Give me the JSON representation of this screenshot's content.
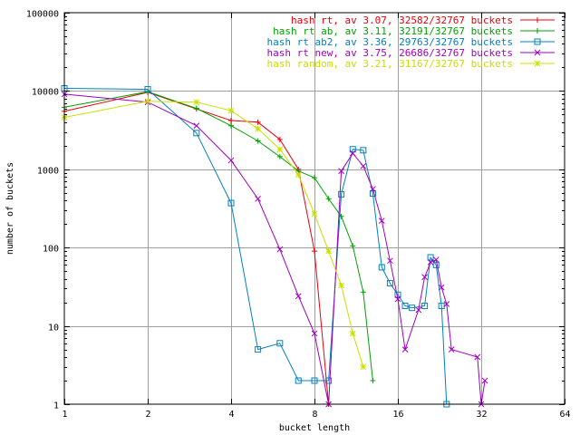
{
  "chart_data": {
    "type": "line",
    "xlabel": "bucket length",
    "ylabel": "number of buckets",
    "x_scale": "log2",
    "y_scale": "log10",
    "xlim": [
      1,
      64
    ],
    "ylim": [
      1,
      100000
    ],
    "x_ticks": [
      {
        "value": 1,
        "label": "1"
      },
      {
        "value": 2,
        "label": "2"
      },
      {
        "value": 4,
        "label": "4"
      },
      {
        "value": 8,
        "label": "8"
      },
      {
        "value": 16,
        "label": "16"
      },
      {
        "value": 32,
        "label": "32"
      },
      {
        "value": 64,
        "label": "64"
      }
    ],
    "y_ticks": [
      {
        "value": 1,
        "label": "1"
      },
      {
        "value": 10,
        "label": "10"
      },
      {
        "value": 100,
        "label": "100"
      },
      {
        "value": 1000,
        "label": "1000"
      },
      {
        "value": 10000,
        "label": "10000"
      },
      {
        "value": 100000,
        "label": "100000"
      }
    ],
    "grid": true,
    "legend_position": "top-right",
    "series": [
      {
        "name": "hash rt, av 3.07, 32582/32767 buckets",
        "color": "#e8000b",
        "marker": "plus",
        "points": [
          [
            1,
            5500
          ],
          [
            2,
            9600
          ],
          [
            3,
            5900
          ],
          [
            4,
            4200
          ],
          [
            5,
            4000
          ],
          [
            6,
            2400
          ],
          [
            7,
            1000
          ],
          [
            8,
            90
          ],
          [
            9,
            1
          ]
        ]
      },
      {
        "name": "hash rt ab, av 3.11, 32191/32767 buckets",
        "color": "#00a000",
        "marker": "plus",
        "points": [
          [
            1,
            6200
          ],
          [
            2,
            9800
          ],
          [
            3,
            6000
          ],
          [
            4,
            3600
          ],
          [
            5,
            2300
          ],
          [
            6,
            1450
          ],
          [
            7,
            950
          ],
          [
            8,
            780
          ],
          [
            9,
            420
          ],
          [
            10,
            250
          ],
          [
            11,
            105
          ],
          [
            12,
            27
          ],
          [
            13,
            2
          ]
        ]
      },
      {
        "name": "hash rt ab2, av 3.36, 29763/32767 buckets",
        "color": "#0080c0",
        "marker": "square",
        "points": [
          [
            1,
            10800
          ],
          [
            2,
            10500
          ],
          [
            3,
            2900
          ],
          [
            4,
            370
          ],
          [
            5,
            5
          ],
          [
            6,
            6
          ],
          [
            7,
            2
          ],
          [
            8,
            2
          ],
          [
            9,
            2
          ],
          [
            10,
            480
          ],
          [
            11,
            1800
          ],
          [
            12,
            1750
          ],
          [
            13,
            490
          ],
          [
            14,
            56
          ],
          [
            15,
            35
          ],
          [
            16,
            25
          ],
          [
            17,
            18
          ],
          [
            18,
            17
          ],
          [
            20,
            18
          ],
          [
            21,
            75
          ],
          [
            22,
            60
          ],
          [
            23,
            18
          ],
          [
            24,
            1
          ]
        ]
      },
      {
        "name": "hash rt new, av 3.75, 26686/32767 buckets",
        "color": "#a000c0",
        "marker": "x",
        "points": [
          [
            1,
            9100
          ],
          [
            2,
            7200
          ],
          [
            3,
            3600
          ],
          [
            4,
            1300
          ],
          [
            5,
            420
          ],
          [
            6,
            95
          ],
          [
            7,
            24
          ],
          [
            8,
            8
          ],
          [
            9,
            1
          ],
          [
            10,
            950
          ],
          [
            11,
            1600
          ],
          [
            12,
            1100
          ],
          [
            13,
            560
          ],
          [
            14,
            220
          ],
          [
            15,
            68
          ],
          [
            16,
            22
          ],
          [
            17,
            5
          ],
          [
            19,
            16
          ],
          [
            20,
            42
          ],
          [
            21,
            65
          ],
          [
            22,
            70
          ],
          [
            23,
            31
          ],
          [
            24,
            19
          ],
          [
            25,
            5
          ],
          [
            31,
            4
          ],
          [
            32,
            1
          ],
          [
            33,
            2
          ]
        ]
      },
      {
        "name": "hash random, av 3.21, 31167/32767 buckets",
        "color": "#c8e000",
        "marker": "star",
        "points": [
          [
            1,
            4600
          ],
          [
            2,
            7400
          ],
          [
            3,
            7200
          ],
          [
            4,
            5600
          ],
          [
            5,
            3300
          ],
          [
            6,
            1800
          ],
          [
            7,
            850
          ],
          [
            8,
            270
          ],
          [
            9,
            90
          ],
          [
            10,
            33
          ],
          [
            11,
            8
          ],
          [
            12,
            3
          ]
        ]
      }
    ]
  }
}
